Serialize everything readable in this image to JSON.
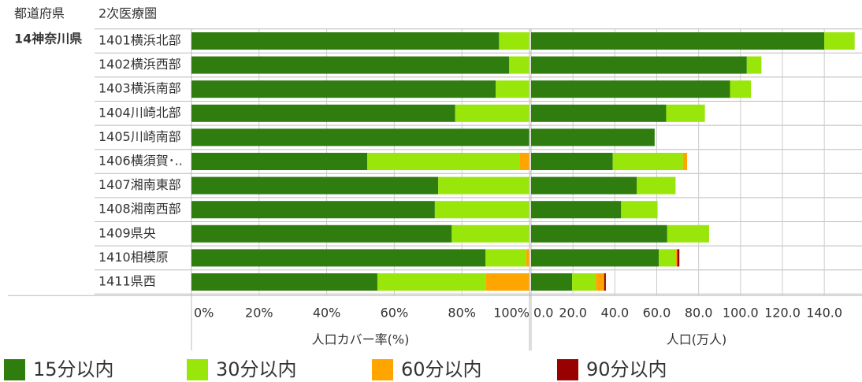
{
  "headers": [
    "都道府県",
    "2次医療圏"
  ],
  "prefecture": "14神奈川県",
  "chart_data": [
    {
      "type": "stacked-barh",
      "categories": [
        "1401横浜北部",
        "1402横浜西部",
        "1403横浜南部",
        "1404川崎北部",
        "1405川崎南部",
        "1406横須賀･..",
        "1407湘南東部",
        "1408湘南西部",
        "1409県央",
        "1410相模原",
        "1411県西"
      ],
      "series": [
        {
          "name": "15分以内",
          "color": "#2e7d0e",
          "values": [
            91,
            94,
            90,
            78,
            100,
            52,
            73,
            72,
            77,
            87,
            55
          ]
        },
        {
          "name": "30分以内",
          "color": "#99e60a",
          "values": [
            9,
            6,
            10,
            22,
            0,
            45,
            27,
            28,
            23,
            12,
            32
          ]
        },
        {
          "name": "60分以内",
          "color": "#ffa500",
          "values": [
            0,
            0,
            0,
            0,
            0,
            3,
            0,
            0,
            0,
            1,
            13
          ]
        },
        {
          "name": "90分以内",
          "color": "#990000",
          "values": [
            0,
            0,
            0,
            0,
            0,
            0,
            0,
            0,
            0,
            0,
            0
          ]
        }
      ],
      "xlim": [
        0,
        100
      ],
      "xticks": [
        {
          "value": 0,
          "label": "0%"
        },
        {
          "value": 20,
          "label": "20%"
        },
        {
          "value": 40,
          "label": "40%"
        },
        {
          "value": 60,
          "label": "60%"
        },
        {
          "value": 80,
          "label": "80%"
        },
        {
          "value": 100,
          "label": "100%"
        }
      ],
      "xlabel": "人口カバー率(%)",
      "grid": true
    },
    {
      "type": "stacked-barh",
      "series": [
        {
          "color": "#2e7d0e",
          "values": [
            140,
            103,
            95,
            64.5,
            59,
            39,
            50.5,
            43,
            65,
            61,
            19.6
          ]
        },
        {
          "color": "#99e60a",
          "values": [
            14.5,
            7,
            10,
            18.5,
            0,
            33.5,
            18.5,
            17.4,
            20,
            8,
            11.3
          ]
        },
        {
          "color": "#ffa500",
          "values": [
            0,
            0,
            0,
            0,
            0,
            2,
            0,
            0,
            0,
            0.8,
            4
          ]
        },
        {
          "color": "#990000",
          "values": [
            0,
            0,
            0,
            0,
            0,
            0,
            0,
            0,
            0,
            1,
            0.8
          ]
        }
      ],
      "xlim": [
        0,
        158
      ],
      "xticks": [
        {
          "value": 0,
          "label": "0.0"
        },
        {
          "value": 20,
          "label": "20.0"
        },
        {
          "value": 40,
          "label": "40.0"
        },
        {
          "value": 60,
          "label": "60.0"
        },
        {
          "value": 80,
          "label": "80.0"
        },
        {
          "value": 100,
          "label": "100.0"
        },
        {
          "value": 120,
          "label": "120.0"
        },
        {
          "value": 140,
          "label": "140.0"
        }
      ],
      "xlabel": "人口(万人)",
      "grid": true
    }
  ]
}
